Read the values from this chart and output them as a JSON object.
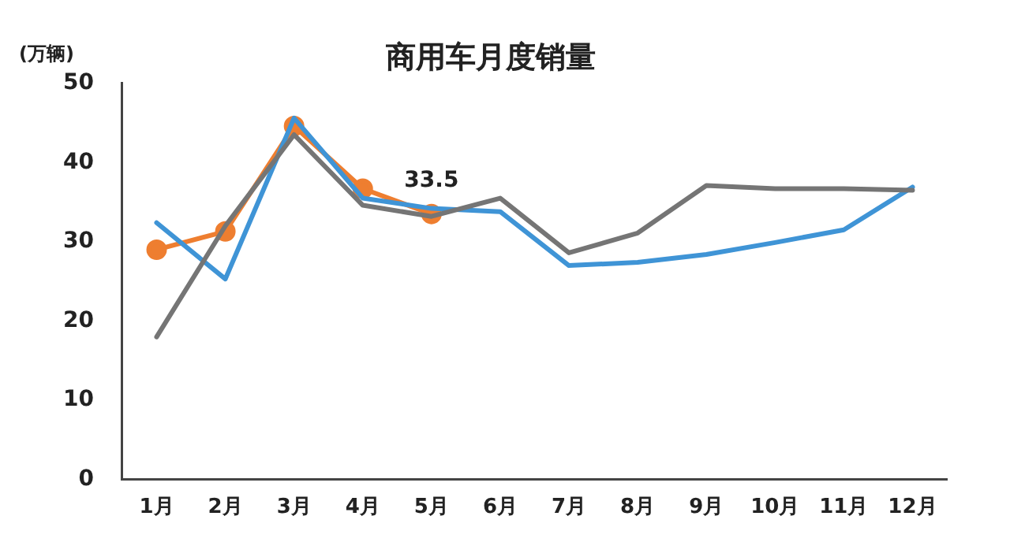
{
  "chart_data": {
    "type": "line",
    "title": "商用车月度销量",
    "ylabel": "(万辆)",
    "categories": [
      "1月",
      "2月",
      "3月",
      "4月",
      "5月",
      "6月",
      "7月",
      "8月",
      "9月",
      "10月",
      "11月",
      "12月"
    ],
    "ylim": [
      0,
      50
    ],
    "yticks": [
      0,
      10,
      20,
      30,
      40,
      50
    ],
    "grid": false,
    "legend": false,
    "line_style": "solid",
    "series": [
      {
        "color": "#757575",
        "marker": "none",
        "values": [
          18,
          32,
          43.5,
          34.6,
          33.2,
          35.5,
          28.6,
          31.1,
          37.1,
          36.7,
          36.7,
          36.5
        ]
      },
      {
        "color": "#3f94d6",
        "marker": "none",
        "values": [
          32.4,
          25.3,
          45.6,
          35.5,
          34.2,
          33.8,
          27,
          27.4,
          28.4,
          29.9,
          31.5,
          36.9
        ]
      },
      {
        "color": "#ee7e30",
        "marker": "circle",
        "values": [
          29,
          31.3,
          44.6,
          36.7,
          33.5,
          null,
          null,
          null,
          null,
          null,
          null,
          null
        ],
        "value_labels": [
          null,
          null,
          null,
          null,
          "33.5",
          null,
          null,
          null,
          null,
          null,
          null,
          null
        ]
      }
    ]
  }
}
